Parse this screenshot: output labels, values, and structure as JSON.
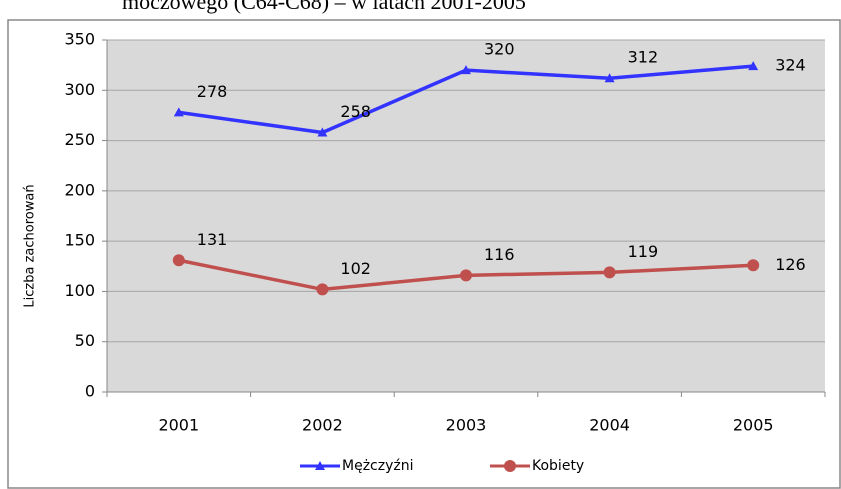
{
  "chart_data": {
    "type": "line",
    "title": "moczowego (C64-C68) – w latach 2001-2005",
    "y_label": "Liczba zachorowań",
    "categories": [
      "2001",
      "2002",
      "2003",
      "2004",
      "2005"
    ],
    "series": [
      {
        "name": "Mężczyźni",
        "color": "#3333ff",
        "marker": "triangle",
        "values": [
          278,
          258,
          320,
          312,
          324
        ]
      },
      {
        "name": "Kobiety",
        "color": "#c0504d",
        "marker": "circle",
        "values": [
          131,
          102,
          116,
          119,
          126
        ]
      }
    ],
    "ylim": [
      0,
      350
    ],
    "yticks": [
      0,
      50,
      100,
      150,
      200,
      250,
      300,
      350
    ],
    "grid": true,
    "legend": "bottom"
  }
}
